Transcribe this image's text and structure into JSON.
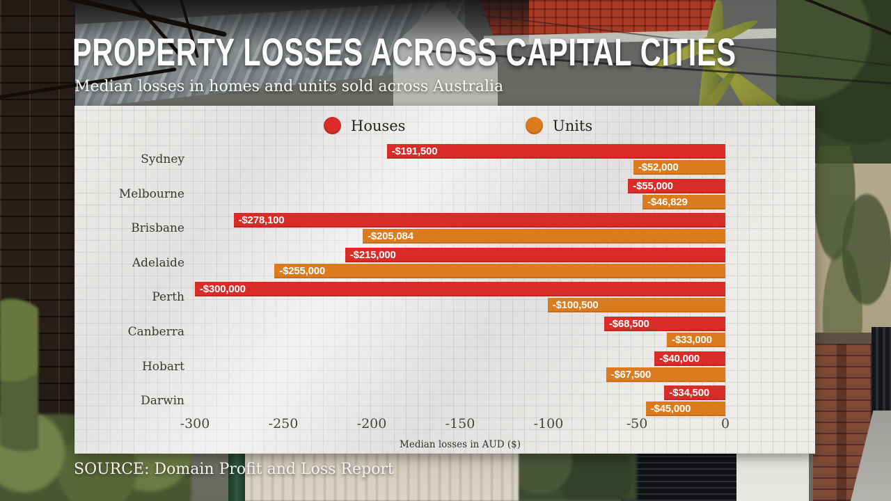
{
  "header": {
    "title": "PROPERTY LOSSES ACROSS CAPITAL CITIES",
    "subtitle": "Median losses in homes and units sold across Australia"
  },
  "source": "SOURCE: Domain Profit and Loss Report",
  "legend": {
    "houses_label": "Houses",
    "units_label": "Units"
  },
  "colors": {
    "houses": "#d92b28",
    "units": "#dc7a1e",
    "paper": "#edebe8"
  },
  "chart_data": {
    "type": "bar",
    "orientation": "horizontal",
    "title": "PROPERTY LOSSES ACROSS CAPITAL CITIES",
    "subtitle": "Median losses in homes and units sold across Australia",
    "xlabel": "Median losses in AUD ($)",
    "categories": [
      "Sydney",
      "Melbourne",
      "Brisbane",
      "Adelaide",
      "Perth",
      "Canberra",
      "Hobart",
      "Darwin"
    ],
    "series": [
      {
        "name": "Houses",
        "color": "#d92b28",
        "values": [
          -191500,
          -55000,
          -278100,
          -215000,
          -300000,
          -68500,
          -40000,
          -34500
        ],
        "labels": [
          "-$191,500",
          "-$55,000",
          "-$278,100",
          "-$215,000",
          "-$300,000",
          "-$68,500",
          "-$40,000",
          "-$34,500"
        ]
      },
      {
        "name": "Units",
        "color": "#dc7a1e",
        "values": [
          -52000,
          -46829,
          -205084,
          -255000,
          -100500,
          -33000,
          -67500,
          -45000
        ],
        "labels": [
          "-$52,000",
          "-$46,829",
          "-$205,084",
          "-$255,000",
          "-$100,500",
          "-$33,000",
          "-$67,500",
          "-$45,000"
        ]
      }
    ],
    "x_ticks_thousands": [
      -300,
      -250,
      -200,
      -150,
      -100,
      -50,
      0
    ],
    "x_tick_labels": [
      "-300",
      "-250",
      "-200",
      "-150",
      "-100",
      "-50",
      "0"
    ],
    "xlim": [
      -300000,
      0
    ],
    "grid": true,
    "legend_position": "top"
  }
}
